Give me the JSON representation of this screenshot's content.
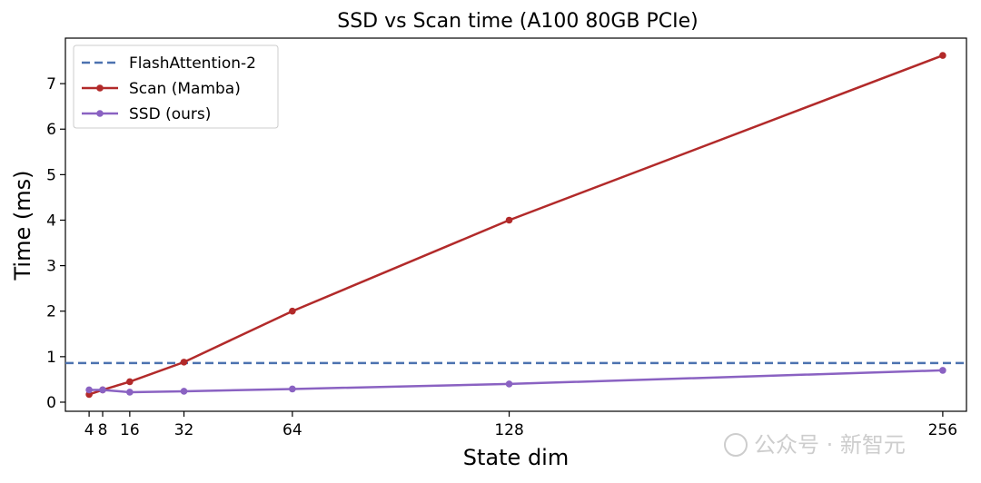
{
  "chart_data": {
    "type": "line",
    "title": "SSD vs Scan time (A100 80GB PCIe)",
    "xlabel": "State dim",
    "ylabel": "Time (ms)",
    "xlim": [
      -3,
      263
    ],
    "ylim": [
      -0.2,
      8.0
    ],
    "x_ticks": [
      4,
      8,
      16,
      32,
      64,
      128,
      256
    ],
    "y_ticks": [
      0,
      1,
      2,
      3,
      4,
      5,
      6,
      7
    ],
    "grid": false,
    "legend_position": "upper-left",
    "reference_lines": [
      {
        "name": "FlashAttention-2",
        "y": 0.86,
        "color": "#4c72b0",
        "style": "dashed"
      }
    ],
    "series": [
      {
        "name": "Scan (Mamba)",
        "color": "#b22a2a",
        "x": [
          4,
          8,
          16,
          32,
          64,
          128,
          256
        ],
        "y": [
          0.17,
          0.27,
          0.45,
          0.88,
          2.0,
          4.0,
          7.62
        ]
      },
      {
        "name": "SSD (ours)",
        "color": "#8a62c2",
        "x": [
          4,
          8,
          16,
          32,
          64,
          128,
          256
        ],
        "y": [
          0.27,
          0.27,
          0.22,
          0.24,
          0.29,
          0.4,
          0.7
        ]
      }
    ]
  },
  "watermark": {
    "text": "公众号 · 新智元"
  }
}
